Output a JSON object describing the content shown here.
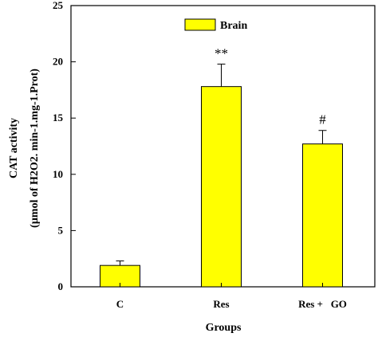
{
  "chart_data": {
    "type": "bar",
    "categories": [
      "C",
      "Res",
      "Res +   GO"
    ],
    "series": [
      {
        "name": "Brain",
        "values": [
          1.9,
          17.8,
          12.7
        ],
        "errors": [
          0.4,
          2.0,
          1.2
        ],
        "annotations": [
          "",
          "**",
          "#"
        ]
      }
    ],
    "xlabel": "Groups",
    "ylabel_line1": "CAT activity",
    "ylabel_line2": "(µmol of H2O2. min-1.mg-1.Prot)",
    "ylim": [
      0,
      25
    ],
    "yticks": [
      0,
      5,
      10,
      15,
      20,
      25
    ],
    "legend_position": "top-center",
    "bar_color": "#ffff00",
    "grid": false
  }
}
